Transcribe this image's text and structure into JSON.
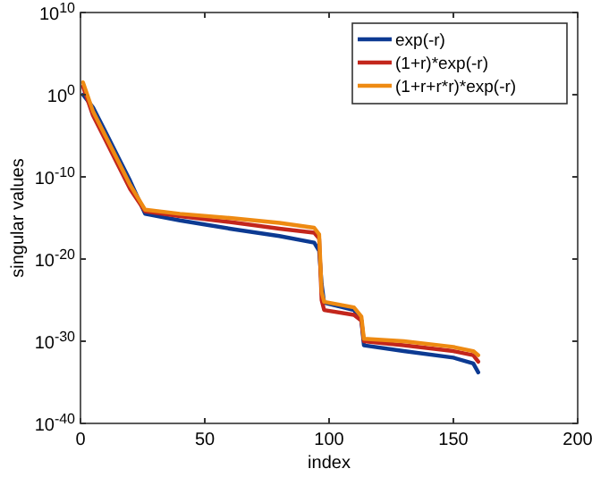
{
  "chart_data": {
    "type": "line",
    "xlabel": "index",
    "ylabel": "singular values",
    "log": "y",
    "legend": "top right",
    "grid": false,
    "line_style": "solid",
    "xlim": [
      0,
      200
    ],
    "xticks": [
      0,
      50,
      100,
      150,
      200
    ],
    "ylim": [
      1e-40,
      10000000000.0
    ],
    "yticks": [
      {
        "value": 1e-40,
        "label": "10$^{-40}$"
      },
      {
        "value": 1e-30,
        "label": "10$^{-30}$"
      },
      {
        "value": 1e-20,
        "label": "10$^{-20}$"
      },
      {
        "value": 1e-10,
        "label": "10$^{-10}$"
      },
      {
        "value": 1,
        "label": "10$^{0}$"
      },
      {
        "value": 10000000000.0,
        "label": "10$^{10}$"
      }
    ],
    "x": [
      1,
      5,
      10,
      15,
      20,
      26,
      40,
      60,
      80,
      94,
      96,
      97,
      98,
      110,
      113,
      114,
      130,
      150,
      158,
      160
    ],
    "series": [
      {
        "name": "exp(-r)",
        "color": "#0c3a92",
        "values": [
          1,
          0.03,
          3.2e-05,
          3.2e-08,
          3.2e-11,
          3.2e-15,
          5e-16,
          5e-17,
          6.3e-18,
          1e-18,
          1e-19,
          1e-23,
          5e-26,
          6.3e-27,
          3.2e-28,
          3.2e-31,
          6.3e-32,
          1e-32,
          2e-33,
          1.6e-34
        ]
      },
      {
        "name": "(1+r)*exp(-r)",
        "color": "#c3261c",
        "values": [
          10,
          0.0032,
          3.2e-06,
          3.2e-09,
          3.2e-12,
          6.3e-15,
          1.6e-15,
          3.2e-16,
          5e-17,
          1.6e-17,
          3.2e-18,
          1e-25,
          6.3e-27,
          1.6e-27,
          3.2e-28,
          1e-30,
          3.2e-31,
          6.3e-32,
          2e-32,
          3.2e-33
        ]
      },
      {
        "name": "(1+r+r*r)*exp(-r)",
        "color": "#ee8a12",
        "values": [
          32,
          0.01,
          1e-05,
          1e-08,
          1e-11,
          1e-14,
          3.2e-15,
          1e-15,
          2.5e-16,
          6.3e-17,
          1e-17,
          1e-24,
          6.3e-26,
          1.3e-26,
          1e-27,
          2e-30,
          1e-30,
          2e-31,
          6.3e-32,
          2e-32
        ]
      }
    ]
  }
}
